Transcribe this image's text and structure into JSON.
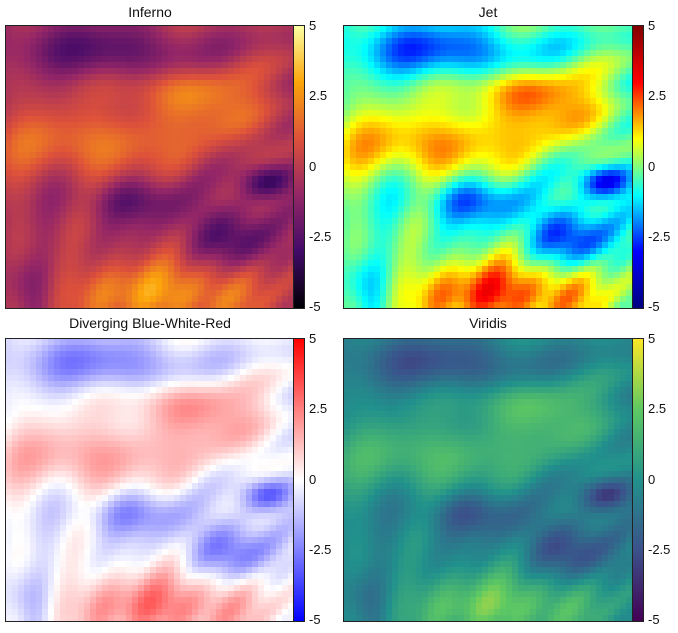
{
  "chart_data": [
    {
      "type": "heatmap",
      "title": "Inferno",
      "colormap": "inferno",
      "colorbar": {
        "range": [
          -5,
          5
        ],
        "ticks": [
          "5",
          "2.5",
          "0",
          "-2.5",
          "-5"
        ]
      }
    },
    {
      "type": "heatmap",
      "title": "Jet",
      "colormap": "jet",
      "colorbar": {
        "range": [
          -5,
          5
        ],
        "ticks": [
          "5",
          "2.5",
          "0",
          "-2.5",
          "-5"
        ]
      }
    },
    {
      "type": "heatmap",
      "title": "Diverging Blue-White-Red",
      "colormap": "bwr",
      "colorbar": {
        "range": [
          -5,
          5
        ],
        "ticks": [
          "5",
          "2.5",
          "0",
          "-2.5",
          "-5"
        ]
      }
    },
    {
      "type": "heatmap",
      "title": "Viridis",
      "colormap": "viridis",
      "colorbar": {
        "range": [
          -5,
          5
        ],
        "ticks": [
          "5",
          "2.5",
          "0",
          "-2.5",
          "-5"
        ]
      }
    }
  ],
  "colors": {
    "inferno": [
      "#000004",
      "#420a68",
      "#932667",
      "#dd513a",
      "#fca50a",
      "#fcffa4"
    ],
    "jet": [
      "#00007f",
      "#0000ff",
      "#00ffff",
      "#ffff00",
      "#ff0000",
      "#7f0000"
    ],
    "bwr": [
      "#0000ff",
      "#ffffff",
      "#ff0000"
    ],
    "viridis": [
      "#440154",
      "#3b528b",
      "#21918c",
      "#5ec962",
      "#fde725"
    ]
  }
}
